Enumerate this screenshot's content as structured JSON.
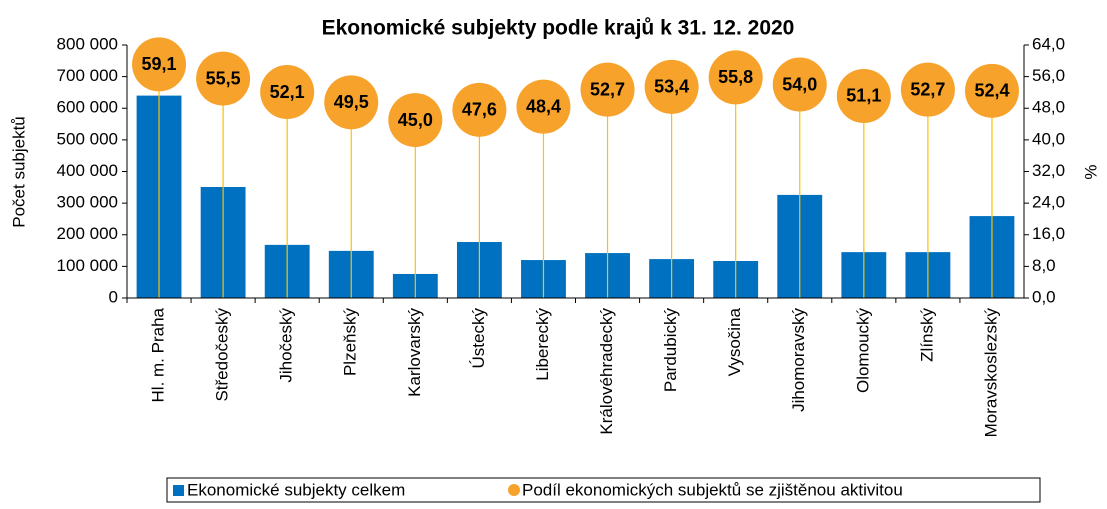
{
  "chart_data": {
    "type": "bar",
    "title": "Ekonomické subjekty podle krajů k 31. 12. 2020",
    "y_label": "Počet subjektů",
    "y2_label": "%",
    "categories": [
      "Hl. m. Praha",
      "Středočeský",
      "Jihočeský",
      "Plzeňský",
      "Karlovarský",
      "Ústecký",
      "Liberecký",
      "Královéhradecký",
      "Pardubický",
      "Vysočina",
      "Jihomoravský",
      "Olomoucký",
      "Zlínský",
      "Moravskoslezský"
    ],
    "series": [
      {
        "name": "Ekonomické subjekty celkem",
        "type": "bar",
        "color": "#0070C0",
        "values": [
          640000,
          351000,
          168000,
          149000,
          76000,
          177000,
          120000,
          142000,
          123000,
          117000,
          326000,
          145000,
          145000,
          259000
        ]
      },
      {
        "name": "Podíl ekonomických subjektů se zjištěnou aktivitou",
        "type": "scatter",
        "axis": "y2",
        "color": "#F7A22B",
        "line_color": "#FFC000",
        "values": [
          59.1,
          55.5,
          52.1,
          49.5,
          45.0,
          47.6,
          48.4,
          52.7,
          53.4,
          55.8,
          54.0,
          51.1,
          52.7,
          52.4
        ],
        "value_labels": [
          "59,1",
          "55,5",
          "52,1",
          "49,5",
          "45,0",
          "47,6",
          "48,4",
          "52,7",
          "53,4",
          "55,8",
          "54,0",
          "51,1",
          "52,7",
          "52,4"
        ]
      }
    ],
    "ylim": [
      0,
      800000
    ],
    "yticks": [
      {
        "value": 0,
        "label": "0"
      },
      {
        "value": 100000,
        "label": "100 000"
      },
      {
        "value": 200000,
        "label": "200 000"
      },
      {
        "value": 300000,
        "label": "300 000"
      },
      {
        "value": 400000,
        "label": "400 000"
      },
      {
        "value": 500000,
        "label": "500 000"
      },
      {
        "value": 600000,
        "label": "600 000"
      },
      {
        "value": 700000,
        "label": "700 000"
      },
      {
        "value": 800000,
        "label": "800 000"
      }
    ],
    "y2lim": [
      0,
      64
    ],
    "y2ticks": [
      {
        "value": 0,
        "label": "0,0"
      },
      {
        "value": 8,
        "label": "8,0"
      },
      {
        "value": 16,
        "label": "16,0"
      },
      {
        "value": 24,
        "label": "24,0"
      },
      {
        "value": 32,
        "label": "32,0"
      },
      {
        "value": 40,
        "label": "40,0"
      },
      {
        "value": 48,
        "label": "48,0"
      },
      {
        "value": 56,
        "label": "56,0"
      },
      {
        "value": 64,
        "label": "64,0"
      }
    ],
    "legend_position": "bottom"
  }
}
